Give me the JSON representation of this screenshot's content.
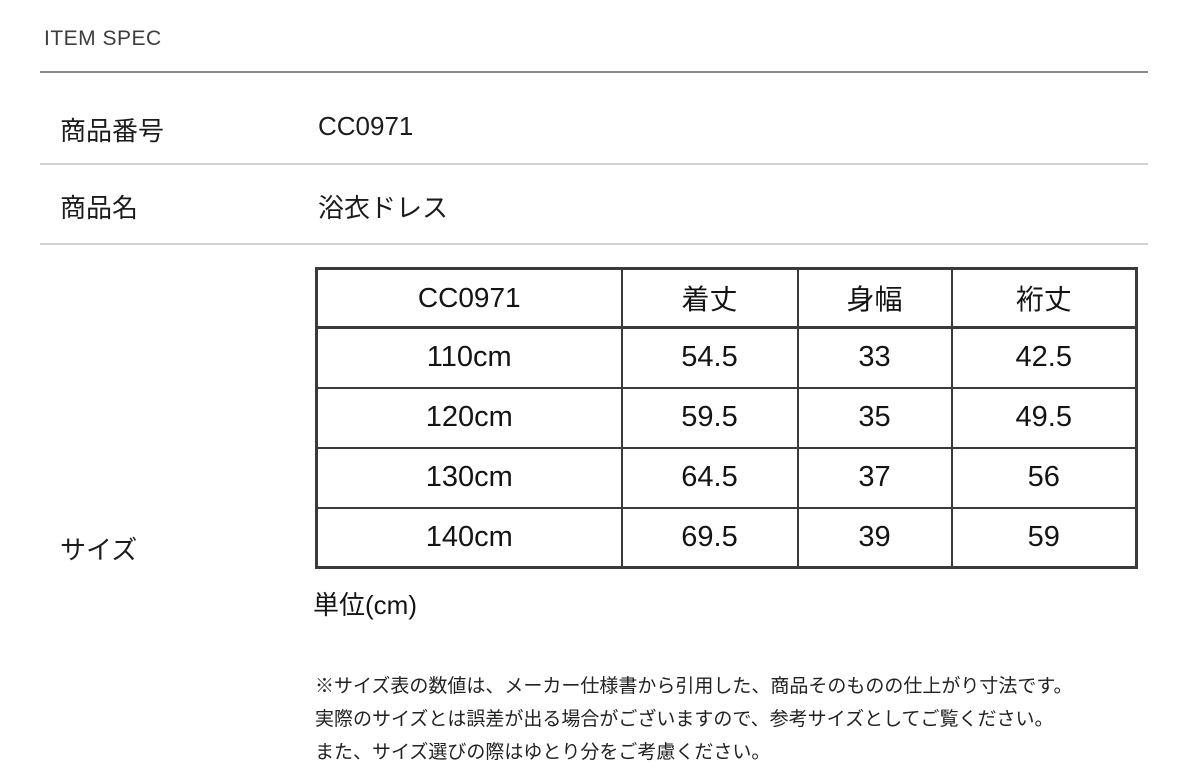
{
  "page": {
    "title": "ITEM SPEC"
  },
  "colors": {
    "background": "#ffffff",
    "text": "#1c1c1c",
    "strong_divider": "#8a8a8a",
    "light_divider": "#d2d2d2",
    "table_border": "#3a3a3a"
  },
  "spec_rows": [
    {
      "label": "商品番号",
      "value": "CC0971"
    },
    {
      "label": "商品名",
      "value": "浴衣ドレス"
    }
  ],
  "size_section": {
    "label": "サイズ",
    "unit_note": "単位(cm)",
    "table": {
      "headers": [
        "CC0971",
        "着丈",
        "身幅",
        "裄丈"
      ],
      "rows": [
        [
          "110cm",
          "54.5",
          "33",
          "42.5"
        ],
        [
          "120cm",
          "59.5",
          "35",
          "49.5"
        ],
        [
          "130cm",
          "64.5",
          "37",
          "56"
        ],
        [
          "140cm",
          "69.5",
          "39",
          "59"
        ]
      ]
    },
    "disclaimer_lines": [
      "※サイズ表の数値は、メーカー仕様書から引用した、商品そのものの仕上がり寸法です。",
      "実際のサイズとは誤差が出る場合がございますので、参考サイズとしてご覧ください。",
      "また、サイズ選びの際はゆとり分をご考慮ください。"
    ]
  }
}
